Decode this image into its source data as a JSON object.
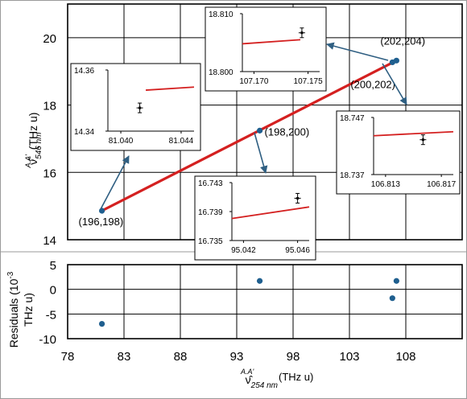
{
  "chart_data": {
    "type": "scatter",
    "main": {
      "xlim": [
        78,
        113
      ],
      "ylim": [
        14,
        21
      ],
      "y_ticks": [
        14,
        16,
        18,
        20
      ],
      "ylabel_symbol": "ν̂",
      "ylabel_superscript": "A.A'",
      "ylabel_subscript": "546 nm",
      "ylabel_unit": "(THz u)",
      "points": [
        {
          "label": "(196,198)",
          "x": 81.04,
          "y": 14.86
        },
        {
          "label": "(198,200)",
          "x": 95.04,
          "y": 17.24
        },
        {
          "label": "(200,202)",
          "x": 106.81,
          "y": 19.27
        },
        {
          "label": "(202,204)",
          "x": 107.17,
          "y": 19.32
        }
      ],
      "fit_line": {
        "color": "#d42020",
        "x": [
          81.04,
          107.17
        ],
        "y": [
          14.86,
          19.32
        ]
      },
      "point_color": "#1f5f8f"
    },
    "insets": [
      {
        "point": "(196,198)",
        "y_ticks": [
          "14.36",
          "14.34"
        ],
        "x_ticks": [
          "81.040",
          "81.044"
        ]
      },
      {
        "point": "(202,204)",
        "y_ticks": [
          "18.810",
          "18.800"
        ],
        "x_ticks": [
          "107.170",
          "107.175"
        ]
      },
      {
        "point": "(198,200)",
        "y_ticks": [
          "16.743",
          "16.739",
          "16.735"
        ],
        "x_ticks": [
          "95.042",
          "95.046"
        ]
      },
      {
        "point": "(200,202)",
        "y_ticks": [
          "18.747",
          "18.737"
        ],
        "x_ticks": [
          "106.813",
          "106.817"
        ]
      }
    ],
    "residuals": {
      "ylim": [
        -10,
        5
      ],
      "y_ticks": [
        "5",
        "0",
        "-5",
        "-10"
      ],
      "ylabel_line1": "Residuals  (10",
      "ylabel_exp": "-3",
      "ylabel_line2": "THz u)",
      "points": [
        {
          "x": 81.04,
          "y": -7.0
        },
        {
          "x": 95.04,
          "y": 1.7
        },
        {
          "x": 106.81,
          "y": -1.8
        },
        {
          "x": 107.17,
          "y": 1.7
        }
      ]
    },
    "x_ticks": [
      "78",
      "83",
      "88",
      "93",
      "98",
      "103",
      "108"
    ],
    "xlabel_symbol": "ν̂",
    "xlabel_superscript": "A.A'",
    "xlabel_subscript": "254 nm",
    "xlabel_unit": "(THz u)"
  }
}
